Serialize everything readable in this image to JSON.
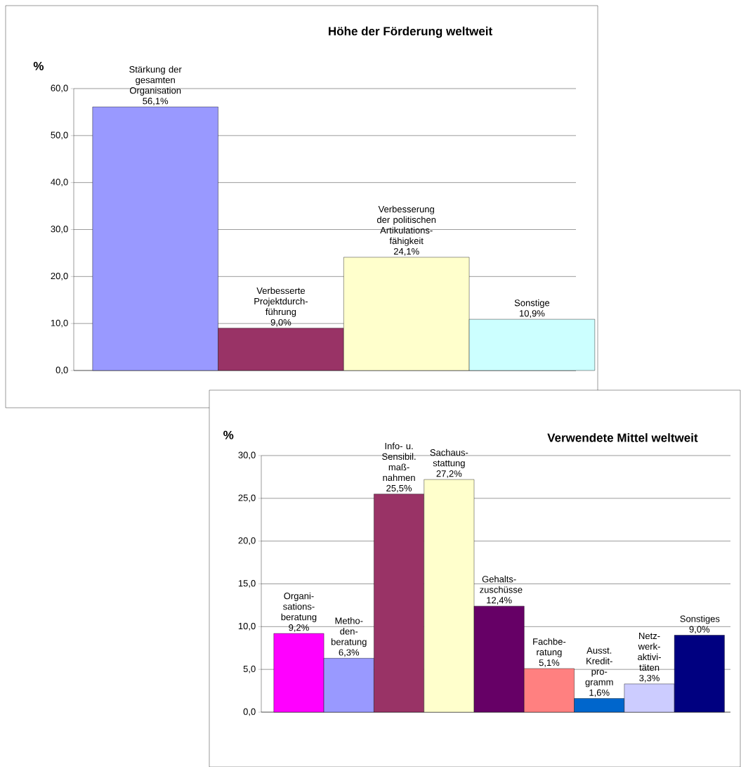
{
  "chart_data": [
    {
      "type": "bar",
      "title": "Höhe der Förderung weltweit",
      "ylabel": "%",
      "categories": [
        "Stärkung der gesamten Organisation",
        "Verbesserte Projektdurch- führung",
        "Verbesserung der politischen Artikulations- fähigkeit",
        "Sonstige"
      ],
      "values": [
        56.1,
        9.0,
        24.1,
        10.9
      ],
      "value_labels": [
        "56,1%",
        "9,0%",
        "24,1%",
        "10,9%"
      ],
      "colors": [
        "#9999ff",
        "#993366",
        "#ffffcc",
        "#ccffff"
      ],
      "ylim": [
        0,
        60
      ],
      "yticks": [
        {
          "value": 0,
          "label": "0,0"
        },
        {
          "value": 10,
          "label": "10,0"
        },
        {
          "value": 20,
          "label": "20,0"
        },
        {
          "value": 30,
          "label": "30,0"
        },
        {
          "value": 40,
          "label": "40,0"
        },
        {
          "value": 50,
          "label": "50,0"
        },
        {
          "value": 60,
          "label": "60,0"
        }
      ],
      "grid": "y"
    },
    {
      "type": "bar",
      "title": "Verwendete Mittel weltweit",
      "ylabel": "%",
      "categories": [
        "Organi- sations- beratung",
        "Metho- den- beratung",
        "Info- u. Sensibil. maß- nahmen",
        "Sachaus- stattung",
        "Gehalts- zuschüsse",
        "Fachbe- ratung",
        "Ausst. Kredit- pro- gramm",
        "Netz- werk- aktivi- täten",
        "Sonstiges"
      ],
      "values": [
        9.2,
        6.3,
        25.5,
        27.2,
        12.4,
        5.1,
        1.6,
        3.3,
        9.0
      ],
      "value_labels": [
        "9,2%",
        "6,3%",
        "25,5%",
        "27,2%",
        "12,4%",
        "5,1%",
        "1,6%",
        "3,3%",
        "9,0%"
      ],
      "colors": [
        "#ff00ff",
        "#9999ff",
        "#993366",
        "#ffffcc",
        "#660066",
        "#ff8080",
        "#0066cc",
        "#ccccff",
        "#000080"
      ],
      "ylim": [
        0,
        30
      ],
      "yticks": [
        {
          "value": 0,
          "label": "0,0"
        },
        {
          "value": 5,
          "label": "5,0"
        },
        {
          "value": 10,
          "label": "10,0"
        },
        {
          "value": 15,
          "label": "15,0"
        },
        {
          "value": 20,
          "label": "20,0"
        },
        {
          "value": 25,
          "label": "25,0"
        },
        {
          "value": 30,
          "label": "30,0"
        }
      ],
      "grid": "y"
    }
  ]
}
